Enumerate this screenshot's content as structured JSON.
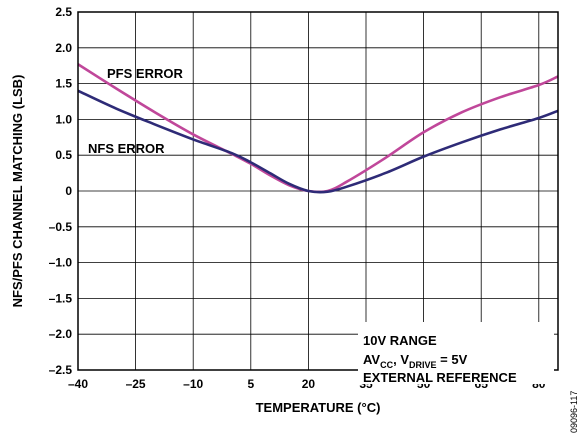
{
  "chart_data": {
    "type": "line",
    "xlabel": "TEMPERATURE (°C)",
    "ylabel": "NFS/PFS CHANNEL MATCHING (LSB)",
    "xlim": [
      -40,
      85
    ],
    "ylim": [
      -2.5,
      2.5
    ],
    "x_ticks": [
      -40,
      -25,
      -10,
      5,
      20,
      35,
      50,
      65,
      80
    ],
    "x_tick_labels": [
      "–40",
      "–25",
      "–10",
      "5",
      "20",
      "35",
      "50",
      "65",
      "80"
    ],
    "y_ticks": [
      2.5,
      2.0,
      1.5,
      1.0,
      0.5,
      0,
      -0.5,
      -1.0,
      -1.5,
      -2.0,
      -2.5
    ],
    "y_tick_labels": [
      "2.5",
      "2.0",
      "1.5",
      "1.0",
      "0.5",
      "0",
      "–0.5",
      "–1.0",
      "–1.5",
      "–2.0",
      "–2.5"
    ],
    "grid": true,
    "series": [
      {
        "name": "PFS ERROR",
        "color": "#c0479a",
        "x": [
          -40,
          -30,
          -20,
          -10,
          0,
          5,
          10,
          15,
          20,
          25,
          30,
          40,
          50,
          60,
          70,
          80,
          85
        ],
        "y": [
          1.77,
          1.43,
          1.1,
          0.79,
          0.52,
          0.38,
          0.22,
          0.08,
          0.0,
          0.0,
          0.13,
          0.46,
          0.82,
          1.1,
          1.31,
          1.48,
          1.6
        ]
      },
      {
        "name": "NFS ERROR",
        "color": "#2e2b77",
        "x": [
          -40,
          -30,
          -20,
          -10,
          0,
          5,
          10,
          15,
          20,
          25,
          30,
          40,
          50,
          60,
          70,
          80,
          85
        ],
        "y": [
          1.4,
          1.15,
          0.93,
          0.72,
          0.53,
          0.4,
          0.25,
          0.1,
          0.0,
          -0.01,
          0.06,
          0.25,
          0.48,
          0.68,
          0.86,
          1.02,
          1.12
        ]
      }
    ],
    "annotations": {
      "line1": "10V RANGE",
      "line2_prefix_a": "AV",
      "line2_sub_a": "CC",
      "line2_mid": ", V",
      "line2_sub_b": "DRIVE",
      "line2_suffix": " = 5V",
      "line3": "EXTERNAL REFERENCE"
    },
    "figure_code": "09096-117"
  }
}
